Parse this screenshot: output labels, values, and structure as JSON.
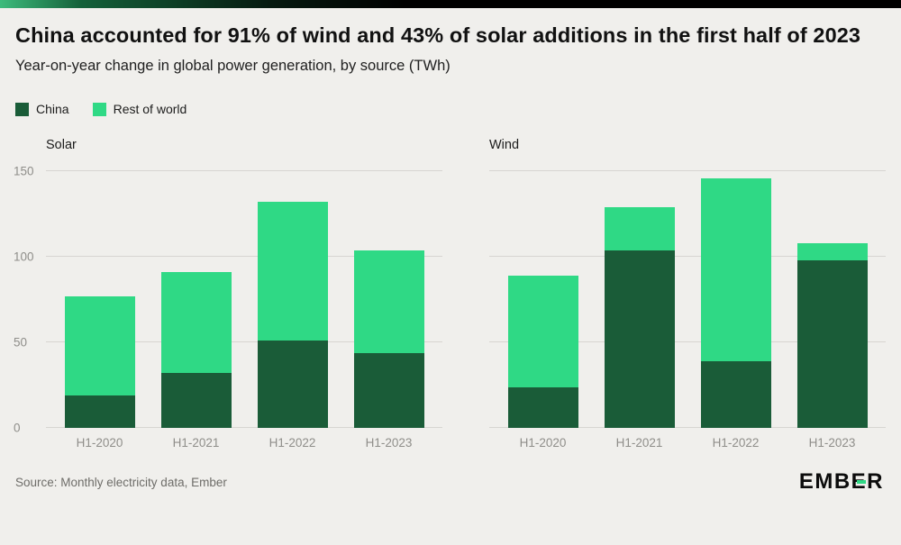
{
  "page": {
    "title": "China accounted for 91% of wind and 43% of solar additions in the first half of 2023",
    "subtitle": "Year-on-year change in global power generation, by source (TWh)",
    "source": "Source: Monthly electricity data, Ember",
    "logo": "EMBER",
    "background": "#f0efec"
  },
  "colors": {
    "china": "#1a5c38",
    "rest_of_world": "#2fd985",
    "gridline": "#d7d5d1",
    "axis_text": "#8f8e8a"
  },
  "legend": [
    {
      "label": "China",
      "color": "#1a5c38"
    },
    {
      "label": "Rest of world",
      "color": "#2fd985"
    }
  ],
  "chart_data": [
    {
      "type": "bar",
      "stacked": true,
      "title": "Solar",
      "categories": [
        "H1-2020",
        "H1-2021",
        "H1-2022",
        "H1-2023"
      ],
      "series": [
        {
          "name": "China",
          "color": "#1a5c38",
          "values": [
            19,
            32,
            51,
            44
          ]
        },
        {
          "name": "Rest of world",
          "color": "#2fd985",
          "values": [
            58,
            59,
            81,
            60
          ]
        }
      ],
      "ylim": [
        0,
        150
      ],
      "yticks": [
        0,
        50,
        100,
        150
      ],
      "show_y_labels": true,
      "grid": true,
      "legend_position": "top-left"
    },
    {
      "type": "bar",
      "stacked": true,
      "title": "Wind",
      "categories": [
        "H1-2020",
        "H1-2021",
        "H1-2022",
        "H1-2023"
      ],
      "series": [
        {
          "name": "China",
          "color": "#1a5c38",
          "values": [
            24,
            104,
            39,
            98
          ]
        },
        {
          "name": "Rest of world",
          "color": "#2fd985",
          "values": [
            65,
            25,
            107,
            10
          ]
        }
      ],
      "ylim": [
        0,
        150
      ],
      "yticks": [
        0,
        50,
        100,
        150
      ],
      "show_y_labels": false,
      "grid": true,
      "legend_position": "top-left"
    }
  ]
}
